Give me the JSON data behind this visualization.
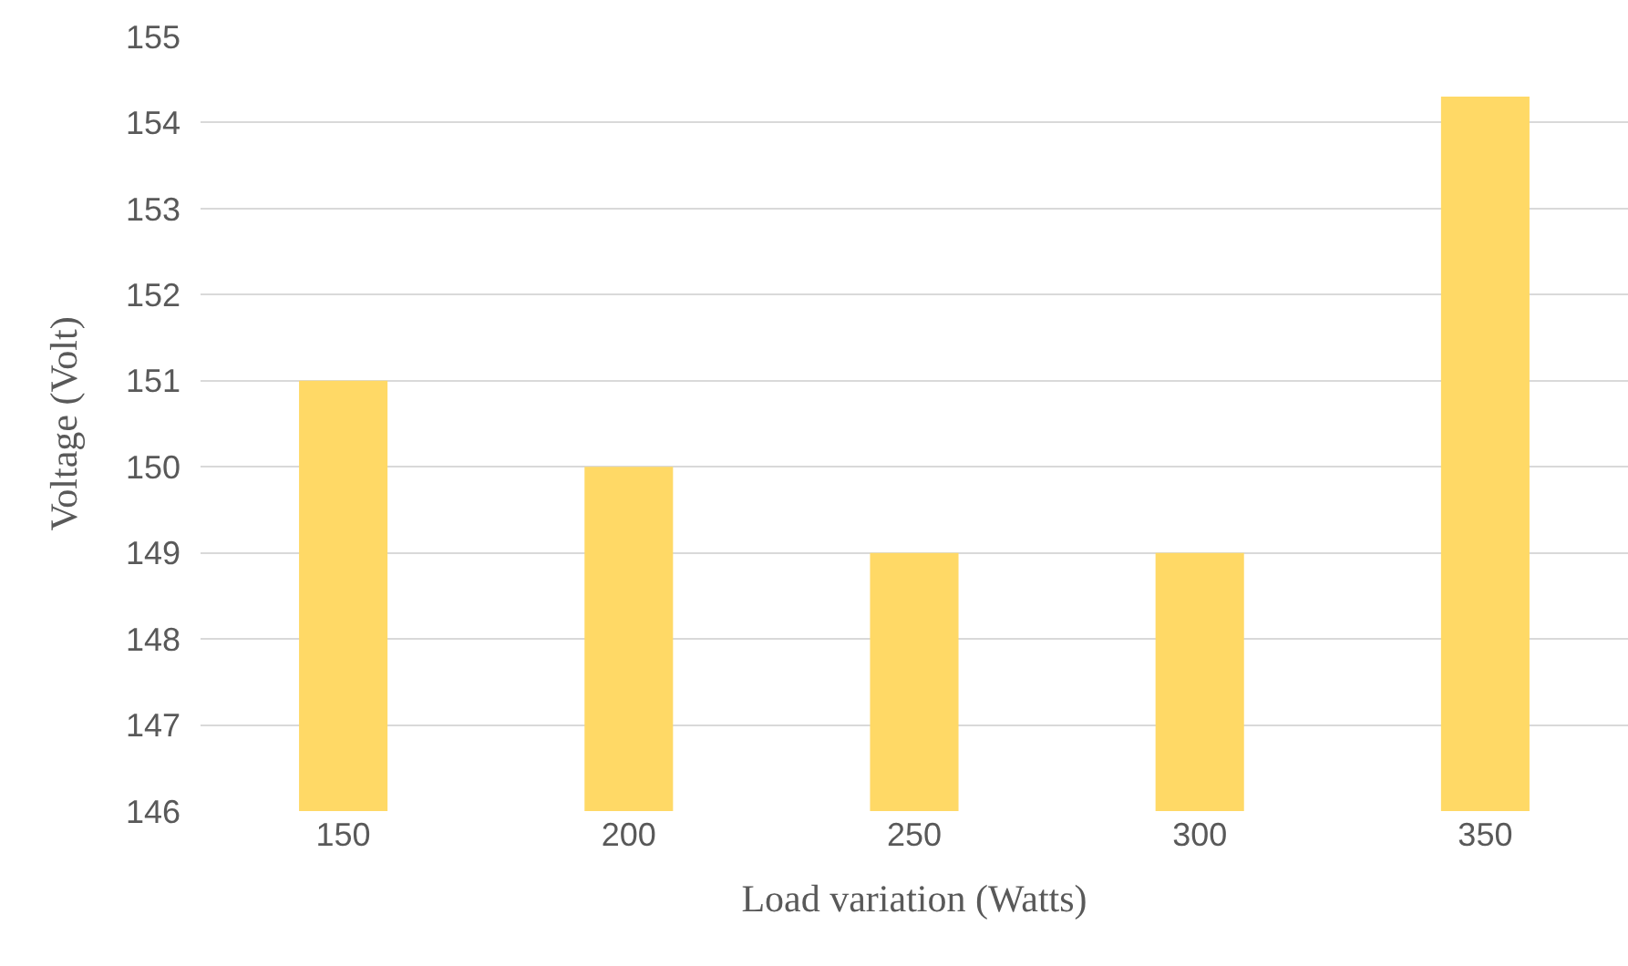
{
  "chart_data": {
    "type": "bar",
    "xlabel": "Load variation (Watts)",
    "ylabel": "Voltage (Volt)",
    "categories": [
      "150",
      "200",
      "250",
      "300",
      "350"
    ],
    "values": [
      151,
      150,
      149,
      149,
      154.3
    ],
    "color": "#ffd966",
    "ylim": [
      146,
      155
    ],
    "yticks": [
      146,
      147,
      148,
      149,
      150,
      151,
      152,
      153,
      154,
      155
    ],
    "grid": "y",
    "legend": false
  }
}
